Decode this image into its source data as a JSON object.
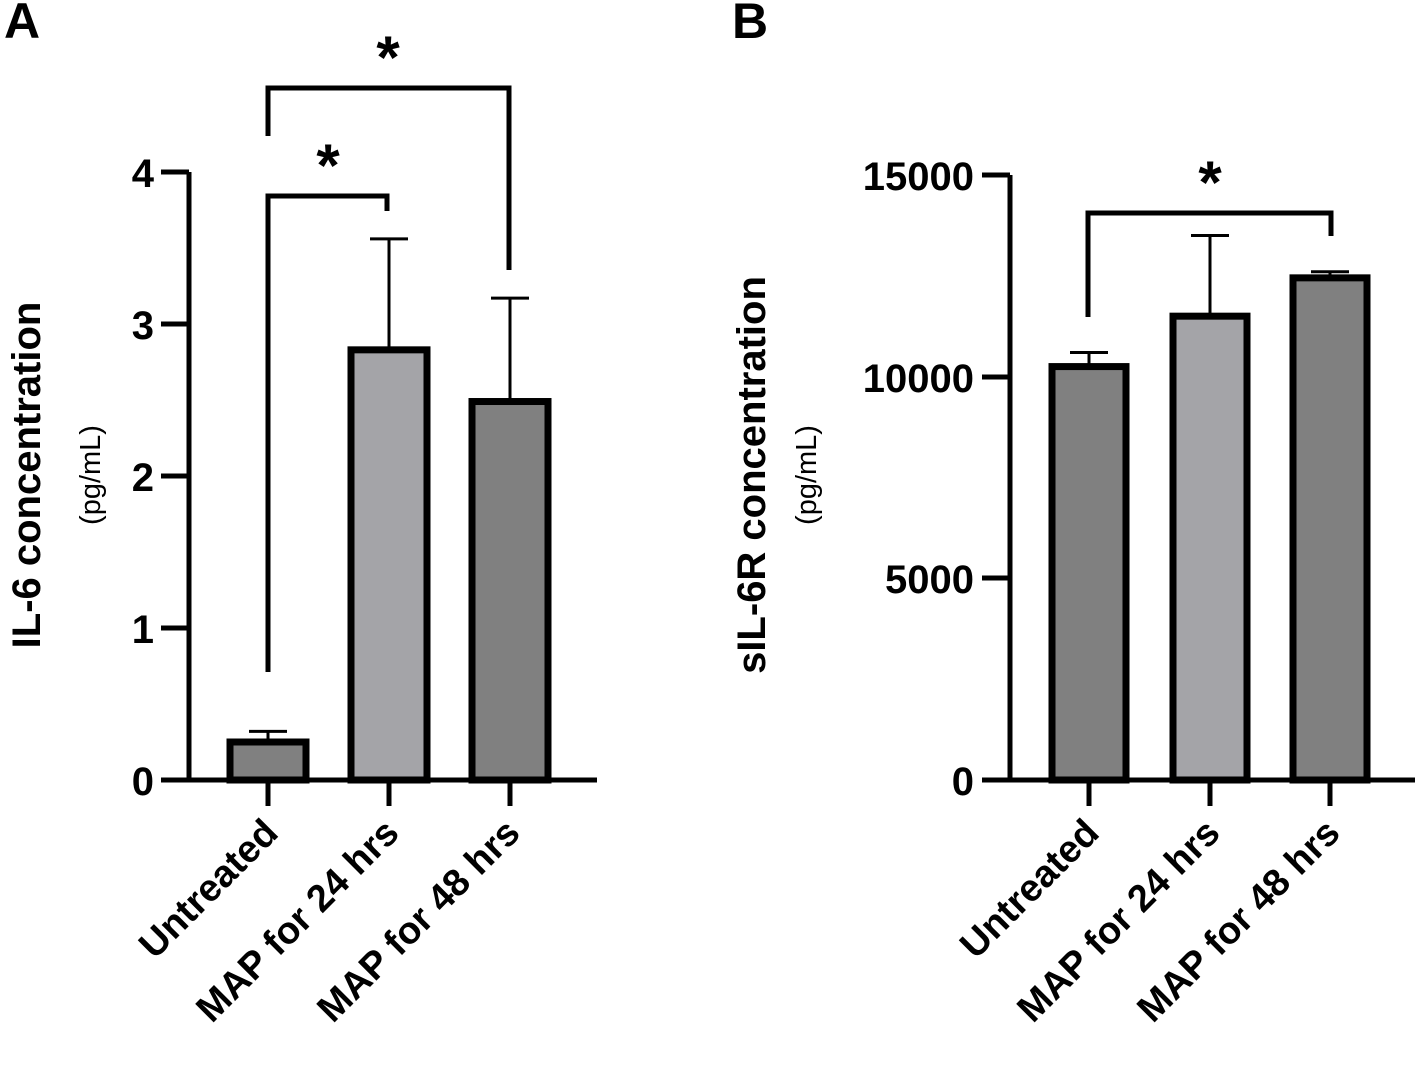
{
  "chart_data": [
    {
      "panel": "A",
      "type": "bar",
      "categories": [
        "Untreated",
        "MAP for 24 hrs",
        "MAP for 48 hrs"
      ],
      "values": [
        0.25,
        2.83,
        2.49
      ],
      "errors": [
        0.07,
        0.73,
        0.68
      ],
      "colors": [
        "#808080",
        "#a4a4a8",
        "#808080"
      ],
      "ylabel": "IL-6 concentration",
      "yunit": "(pg/mL)",
      "ylim": [
        0,
        4
      ],
      "yticks": [
        "0",
        "1",
        "2",
        "3",
        "4"
      ],
      "significance": [
        {
          "from": 0,
          "to": 1,
          "label": "*"
        },
        {
          "from": 0,
          "to": 2,
          "label": "*"
        }
      ]
    },
    {
      "panel": "B",
      "type": "bar",
      "categories": [
        "Untreated",
        "MAP for 24 hrs",
        "MAP for 48 hrs"
      ],
      "values": [
        10250,
        11500,
        12450
      ],
      "errors": [
        350,
        2000,
        150
      ],
      "colors": [
        "#808080",
        "#a4a4a8",
        "#808080"
      ],
      "ylabel": "sIL-6R concentration",
      "yunit": "(pg/mL)",
      "ylim": [
        0,
        15000
      ],
      "yticks": [
        "0",
        "5000",
        "10000",
        "15000"
      ],
      "significance": [
        {
          "from": 0,
          "to": 2,
          "label": "*"
        }
      ]
    }
  ]
}
